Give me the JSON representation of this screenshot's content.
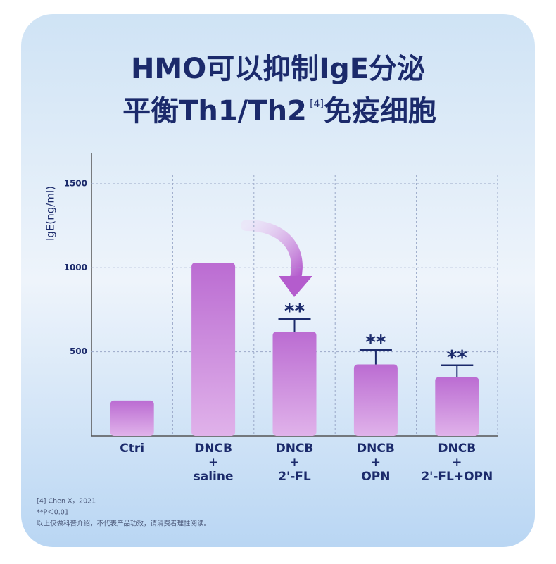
{
  "chart_data": {
    "type": "bar",
    "title": [
      "HMO可以抑制IgE分泌",
      "平衡Th1/Th2",
      "免疫细胞"
    ],
    "title_superscript": "[4]",
    "ylabel": "IgE(ng/ml)",
    "categories": [
      [
        "Ctri"
      ],
      [
        "DNCB",
        "+",
        "saline"
      ],
      [
        "DNCB",
        "+",
        "2'-FL"
      ],
      [
        "DNCB",
        "+",
        "OPN"
      ],
      [
        "DNCB",
        "+",
        "2'-FL+OPN"
      ]
    ],
    "values": [
      210,
      1030,
      620,
      425,
      350
    ],
    "errors": [
      null,
      null,
      75,
      85,
      70
    ],
    "significance": [
      null,
      null,
      "**",
      "**",
      "**"
    ],
    "color": "#bb6cd2",
    "ylim": [
      0,
      1680
    ],
    "yticks": [
      500,
      1000,
      1500
    ],
    "grid": true,
    "footnotes": [
      "[4] Chen X，2021",
      "**P＜0.01",
      "以上仅做科普介绍，不代表产品功效，请消费者理性阅读。"
    ]
  }
}
